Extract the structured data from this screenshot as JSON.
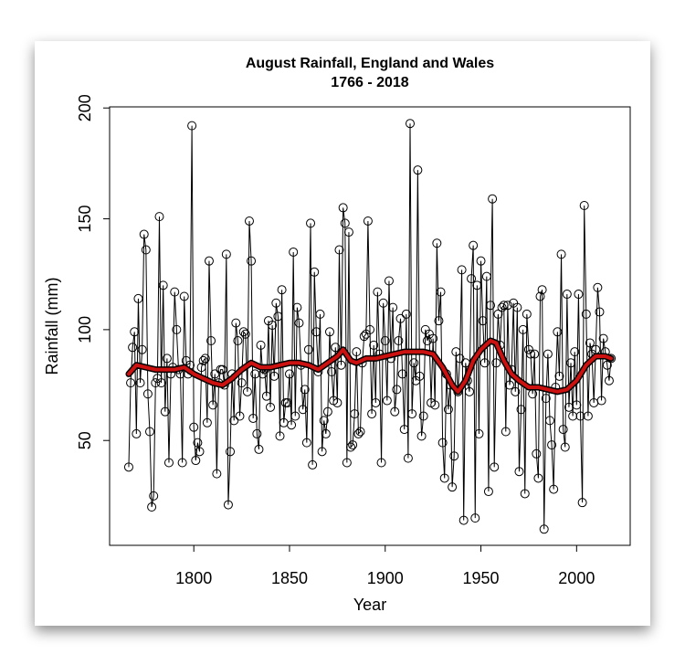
{
  "chart_data": {
    "type": "line",
    "title": "August Rainfall, England and Wales",
    "subtitle": "1766 - 2018",
    "x_label": "Year",
    "y_label": "Rainfall (mm)",
    "xlim": [
      1756,
      2028
    ],
    "ylim": [
      2.7,
      200.5
    ],
    "xticks": [
      1800,
      1850,
      1900,
      1950,
      2000
    ],
    "yticks": [
      50,
      100,
      150,
      200
    ],
    "x": [
      1766,
      1767,
      1768,
      1769,
      1770,
      1771,
      1772,
      1773,
      1774,
      1775,
      1776,
      1777,
      1778,
      1779,
      1780,
      1781,
      1782,
      1783,
      1784,
      1785,
      1786,
      1787,
      1788,
      1789,
      1790,
      1791,
      1792,
      1793,
      1794,
      1795,
      1796,
      1797,
      1798,
      1799,
      1800,
      1801,
      1802,
      1803,
      1804,
      1805,
      1806,
      1807,
      1808,
      1809,
      1810,
      1811,
      1812,
      1813,
      1814,
      1815,
      1816,
      1817,
      1818,
      1819,
      1820,
      1821,
      1822,
      1823,
      1824,
      1825,
      1826,
      1827,
      1828,
      1829,
      1830,
      1831,
      1832,
      1833,
      1834,
      1835,
      1836,
      1837,
      1838,
      1839,
      1840,
      1841,
      1842,
      1843,
      1844,
      1845,
      1846,
      1847,
      1848,
      1849,
      1850,
      1851,
      1852,
      1853,
      1854,
      1855,
      1856,
      1857,
      1858,
      1859,
      1860,
      1861,
      1862,
      1863,
      1864,
      1865,
      1866,
      1867,
      1868,
      1869,
      1870,
      1871,
      1872,
      1873,
      1874,
      1875,
      1876,
      1877,
      1878,
      1879,
      1880,
      1881,
      1882,
      1883,
      1884,
      1885,
      1886,
      1887,
      1888,
      1889,
      1890,
      1891,
      1892,
      1893,
      1894,
      1895,
      1896,
      1897,
      1898,
      1899,
      1900,
      1901,
      1902,
      1903,
      1904,
      1905,
      1906,
      1907,
      1908,
      1909,
      1910,
      1911,
      1912,
      1913,
      1914,
      1915,
      1916,
      1917,
      1918,
      1919,
      1920,
      1921,
      1922,
      1923,
      1924,
      1925,
      1926,
      1927,
      1928,
      1929,
      1930,
      1931,
      1932,
      1933,
      1934,
      1935,
      1936,
      1937,
      1938,
      1939,
      1940,
      1941,
      1942,
      1943,
      1944,
      1945,
      1946,
      1947,
      1948,
      1949,
      1950,
      1951,
      1952,
      1953,
      1954,
      1955,
      1956,
      1957,
      1958,
      1959,
      1960,
      1961,
      1962,
      1963,
      1964,
      1965,
      1966,
      1967,
      1968,
      1969,
      1970,
      1971,
      1972,
      1973,
      1974,
      1975,
      1976,
      1977,
      1978,
      1979,
      1980,
      1981,
      1982,
      1983,
      1984,
      1985,
      1986,
      1987,
      1988,
      1989,
      1990,
      1991,
      1992,
      1993,
      1994,
      1995,
      1996,
      1997,
      1998,
      1999,
      2000,
      2001,
      2002,
      2003,
      2004,
      2005,
      2006,
      2007,
      2008,
      2009,
      2010,
      2011,
      2012,
      2013,
      2014,
      2015,
      2016,
      2017,
      2018
    ],
    "series": [
      {
        "color": "#000000",
        "values": [
          38,
          76,
          92,
          99,
          53,
          114,
          76,
          91,
          143,
          136,
          71,
          54,
          20,
          25,
          76,
          78,
          151,
          76,
          120,
          63,
          87,
          40,
          80,
          83,
          117,
          100,
          82,
          80,
          40,
          115,
          86,
          80,
          84,
          192,
          56,
          41,
          49,
          45,
          83,
          86,
          87,
          58,
          131,
          95,
          66,
          80,
          35,
          76,
          82,
          82,
          75,
          134,
          21,
          45,
          80,
          59,
          103,
          95,
          61,
          76,
          99,
          98,
          72,
          149,
          131,
          60,
          80,
          53,
          46,
          93,
          80,
          82,
          70,
          104,
          65,
          102,
          79,
          112,
          106,
          52,
          118,
          58,
          67,
          67,
          80,
          57,
          135,
          61,
          110,
          103,
          84,
          64,
          73,
          49,
          91,
          148,
          39,
          126,
          99,
          81,
          107,
          45,
          59,
          53,
          63,
          99,
          81,
          68,
          92,
          67,
          136,
          84,
          155,
          148,
          40,
          144,
          47,
          48,
          62,
          90,
          53,
          54,
          85,
          97,
          98,
          149,
          100,
          62,
          93,
          67,
          117,
          89,
          40,
          112,
          95,
          68,
          122,
          87,
          110,
          63,
          73,
          95,
          105,
          80,
          55,
          107,
          42,
          193,
          62,
          85,
          77,
          172,
          79,
          52,
          61,
          100,
          95,
          98,
          67,
          96,
          66,
          139,
          104,
          117,
          49,
          33,
          80,
          64,
          75,
          29,
          43,
          90,
          72,
          87,
          127,
          14,
          85,
          77,
          72,
          123,
          138,
          15,
          120,
          53,
          131,
          104,
          85,
          124,
          27,
          111,
          159,
          38,
          85,
          107,
          93,
          110,
          111,
          54,
          111,
          75,
          82,
          112,
          72,
          110,
          36,
          64,
          100,
          26,
          107,
          91,
          89,
          71,
          89,
          44,
          33,
          115,
          118,
          10,
          69,
          89,
          59,
          48,
          28,
          74,
          99,
          79,
          134,
          55,
          47,
          116,
          65,
          85,
          61,
          90,
          66,
          116,
          61,
          22,
          156,
          107,
          61,
          94,
          89,
          67,
          91,
          119,
          108,
          68,
          96,
          90,
          84,
          77,
          87
        ]
      },
      {
        "color": "#cc1111",
        "x": [
          1766,
          1770,
          1775,
          1780,
          1785,
          1790,
          1795,
          1800,
          1805,
          1810,
          1815,
          1820,
          1825,
          1830,
          1835,
          1840,
          1845,
          1850,
          1855,
          1860,
          1865,
          1870,
          1875,
          1878,
          1882,
          1885,
          1890,
          1895,
          1900,
          1905,
          1910,
          1915,
          1920,
          1925,
          1930,
          1935,
          1938,
          1942,
          1946,
          1950,
          1955,
          1958,
          1962,
          1966,
          1970,
          1975,
          1980,
          1985,
          1990,
          1995,
          2000,
          2005,
          2010,
          2015,
          2018
        ],
        "values": [
          80,
          84,
          83,
          82,
          82,
          82,
          83,
          80,
          78,
          76,
          75,
          78,
          82,
          85,
          83,
          83,
          84,
          85,
          85,
          84,
          82,
          85,
          88,
          91,
          86,
          85,
          87,
          87,
          88,
          89,
          90,
          90,
          90,
          89,
          83,
          75,
          72,
          77,
          86,
          91,
          95,
          94,
          86,
          80,
          77,
          74,
          74,
          73,
          72,
          73,
          77,
          84,
          88,
          88,
          87
        ]
      }
    ]
  }
}
